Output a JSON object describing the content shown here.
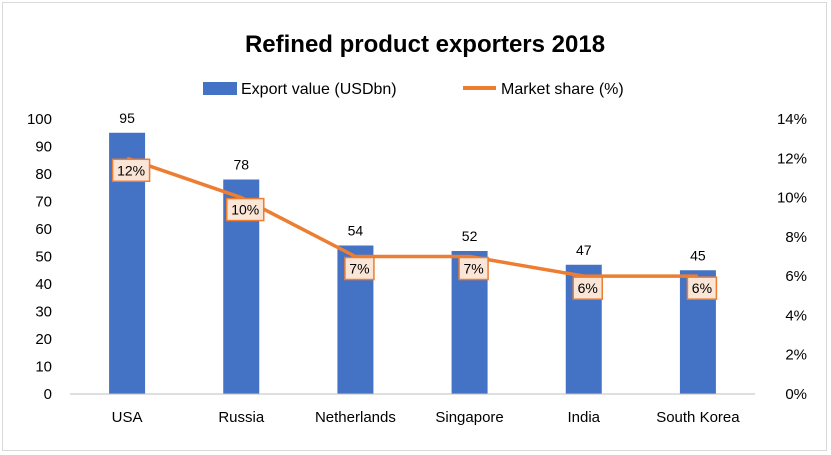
{
  "chart_data": {
    "type": "bar",
    "title": "Refined product exporters 2018",
    "categories": [
      "USA",
      "Russia",
      "Netherlands",
      "Singapore",
      "India",
      "South Korea"
    ],
    "series": [
      {
        "name": "Export value (USDbn)",
        "type": "bar",
        "axis": "left",
        "color": "#4472c4",
        "values": [
          95,
          78,
          54,
          52,
          47,
          45
        ],
        "labels": [
          "95",
          "78",
          "54",
          "52",
          "47",
          "45"
        ]
      },
      {
        "name": "Market share (%)",
        "type": "line",
        "axis": "right",
        "color": "#ed7d31",
        "values": [
          12,
          10,
          7,
          7,
          6,
          6
        ],
        "labels": [
          "12%",
          "10%",
          "7%",
          "7%",
          "6%",
          "6%"
        ]
      }
    ],
    "y_left": {
      "min": 0,
      "max": 100,
      "ticks": [
        "0",
        "10",
        "20",
        "30",
        "40",
        "50",
        "60",
        "70",
        "80",
        "90",
        "100"
      ]
    },
    "y_right": {
      "min": 0,
      "max": 14,
      "ticks": [
        "0%",
        "2%",
        "4%",
        "6%",
        "8%",
        "10%",
        "12%",
        "14%"
      ]
    },
    "legend_position": "top",
    "grid": false
  }
}
